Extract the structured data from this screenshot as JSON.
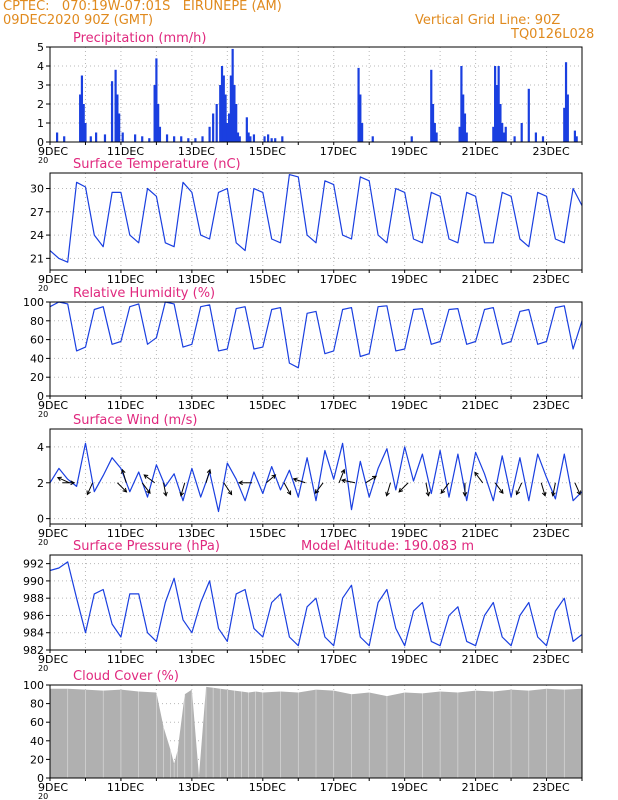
{
  "header": {
    "line1": "CPTEC:   070:19W-07:01S   EIRUNEPE (AM)",
    "line2": "09DEC2020 90Z (GMT)",
    "grid_note": "Vertical Grid Line: 90Z",
    "code": "TQ0126L028"
  },
  "colors": {
    "header": "#e08a1e",
    "title": "#e0287e",
    "series": "#1a3fe0",
    "cloud": "#b0b0b0",
    "grid": "#b8b8b8",
    "arrow": "#000000"
  },
  "x_ticks": [
    "9DEC",
    "11DEC",
    "13DEC",
    "15DEC",
    "17DEC",
    "19DEC",
    "21DEC",
    "23DEC"
  ],
  "x_tick_sub": "20",
  "panels": [
    {
      "title": "Precipitation (mm/h)",
      "ylabel_ticks": [
        "0",
        "1",
        "2",
        "3",
        "4",
        "5"
      ]
    },
    {
      "title": "Surface Temperature (nC)",
      "ylabel_ticks": [
        "21",
        "24",
        "27",
        "30"
      ]
    },
    {
      "title": "Relative Humidity (%)",
      "ylabel_ticks": [
        "0",
        "20",
        "40",
        "60",
        "80",
        "100"
      ]
    },
    {
      "title": "Surface Wind (m/s)",
      "ylabel_ticks": [
        "0",
        "2",
        "4"
      ]
    },
    {
      "title": "Surface Pressure (hPa)",
      "extra": "Model Altitude: 190.083 m",
      "ylabel_ticks": [
        "982",
        "984",
        "986",
        "988",
        "990",
        "992"
      ]
    },
    {
      "title": "Cloud Cover (%)",
      "ylabel_ticks": [
        "0",
        "20",
        "40",
        "60",
        "80",
        "100"
      ]
    }
  ],
  "chart_data": [
    {
      "type": "bar",
      "title": "Precipitation (mm/h)",
      "x_unit": "days since 09DEC 00Z",
      "ylim": [
        0,
        5
      ],
      "x": [
        0.2,
        0.4,
        0.85,
        0.9,
        0.95,
        1.0,
        1.15,
        1.3,
        1.55,
        1.75,
        1.85,
        1.9,
        1.95,
        2.05,
        2.4,
        2.6,
        2.8,
        2.95,
        3.0,
        3.05,
        3.1,
        3.3,
        3.5,
        3.7,
        3.9,
        4.1,
        4.3,
        4.5,
        4.6,
        4.7,
        4.8,
        4.85,
        4.9,
        4.95,
        5.0,
        5.05,
        5.1,
        5.15,
        5.2,
        5.25,
        5.3,
        5.35,
        5.55,
        5.6,
        5.65,
        5.75,
        6.05,
        6.15,
        6.25,
        6.35,
        6.55,
        8.7,
        8.75,
        8.8,
        9.1,
        10.2,
        10.75,
        10.8,
        10.85,
        10.9,
        11.55,
        11.6,
        11.65,
        11.7,
        11.75,
        12.5,
        12.55,
        12.6,
        12.65,
        12.7,
        12.75,
        12.8,
        12.85,
        13.1,
        13.3,
        13.5,
        13.7,
        13.9,
        14.5,
        14.55,
        14.6,
        14.8,
        14.85
      ],
      "values": [
        0.5,
        0.3,
        2.5,
        3.5,
        2.0,
        1.0,
        0.3,
        0.5,
        0.4,
        3.2,
        3.8,
        2.5,
        1.5,
        0.5,
        0.4,
        0.3,
        0.2,
        3.0,
        4.4,
        2.0,
        0.8,
        0.4,
        0.3,
        0.3,
        0.2,
        0.2,
        0.3,
        0.8,
        1.5,
        2.0,
        3.0,
        4.0,
        3.5,
        2.5,
        1.0,
        1.5,
        3.5,
        4.9,
        3.0,
        2.0,
        0.5,
        0.3,
        1.3,
        0.5,
        0.3,
        0.4,
        0.3,
        0.4,
        0.2,
        0.2,
        0.3,
        3.9,
        2.5,
        1.0,
        0.3,
        0.3,
        3.8,
        2.0,
        1.0,
        0.5,
        0.8,
        4.0,
        2.5,
        1.5,
        0.5,
        0.8,
        4.0,
        3.0,
        4.0,
        2.0,
        1.0,
        0.5,
        0.8,
        0.3,
        1.0,
        2.8,
        0.5,
        0.3,
        1.8,
        4.2,
        2.5,
        0.6,
        0.3
      ]
    },
    {
      "type": "line",
      "title": "Surface Temperature (nC)",
      "x_unit": "days since 09DEC 00Z",
      "ylim": [
        19.5,
        32
      ],
      "x": [
        0,
        0.25,
        0.5,
        0.75,
        1,
        1.25,
        1.5,
        1.75,
        2,
        2.25,
        2.5,
        2.75,
        3,
        3.25,
        3.5,
        3.75,
        4,
        4.25,
        4.5,
        4.75,
        5,
        5.25,
        5.5,
        5.75,
        6,
        6.25,
        6.5,
        6.75,
        7,
        7.25,
        7.5,
        7.75,
        8,
        8.25,
        8.5,
        8.75,
        9,
        9.25,
        9.5,
        9.75,
        10,
        10.25,
        10.5,
        10.75,
        11,
        11.25,
        11.5,
        11.75,
        12,
        12.25,
        12.5,
        12.75,
        13,
        13.25,
        13.5,
        13.75,
        14,
        14.25,
        14.5,
        14.75,
        15
      ],
      "values": [
        22,
        21,
        20.5,
        30.8,
        30.2,
        24,
        22.5,
        29.5,
        29.5,
        24,
        23,
        30,
        29,
        23,
        22.5,
        30.8,
        29.5,
        24,
        23.5,
        29.5,
        30,
        23,
        22,
        30,
        29.5,
        23.5,
        23,
        31.8,
        31.5,
        24,
        23,
        31,
        30.5,
        24,
        23.5,
        31.5,
        31,
        24,
        23,
        30,
        29.5,
        23.5,
        23,
        29.5,
        29,
        23.5,
        23,
        29.5,
        29,
        23,
        23,
        29.5,
        29,
        23.5,
        22.5,
        29.5,
        29,
        23.5,
        23,
        30,
        27.8
      ]
    },
    {
      "type": "line",
      "title": "Relative Humidity (%)",
      "x_unit": "days since 09DEC 00Z",
      "ylim": [
        0,
        100
      ],
      "x": [
        0,
        0.25,
        0.5,
        0.75,
        1,
        1.25,
        1.5,
        1.75,
        2,
        2.25,
        2.5,
        2.75,
        3,
        3.25,
        3.5,
        3.75,
        4,
        4.25,
        4.5,
        4.75,
        5,
        5.25,
        5.5,
        5.75,
        6,
        6.25,
        6.5,
        6.75,
        7,
        7.25,
        7.5,
        7.75,
        8,
        8.25,
        8.5,
        8.75,
        9,
        9.25,
        9.5,
        9.75,
        10,
        10.25,
        10.5,
        10.75,
        11,
        11.25,
        11.5,
        11.75,
        12,
        12.25,
        12.5,
        12.75,
        13,
        13.25,
        13.5,
        13.75,
        14,
        14.25,
        14.5,
        14.75,
        15
      ],
      "values": [
        95,
        100,
        98,
        48,
        52,
        92,
        95,
        55,
        58,
        95,
        98,
        55,
        62,
        100,
        98,
        52,
        55,
        95,
        97,
        48,
        50,
        93,
        95,
        50,
        52,
        92,
        94,
        35,
        30,
        88,
        90,
        45,
        48,
        92,
        94,
        42,
        45,
        95,
        96,
        48,
        50,
        92,
        93,
        55,
        58,
        92,
        93,
        55,
        58,
        92,
        94,
        55,
        58,
        90,
        92,
        55,
        58,
        94,
        96,
        50,
        80
      ]
    },
    {
      "type": "line",
      "title": "Surface Wind (m/s)",
      "x_unit": "days since 09DEC 00Z",
      "ylim": [
        -0.3,
        5
      ],
      "x": [
        0,
        0.25,
        0.5,
        0.75,
        1,
        1.25,
        1.5,
        1.75,
        2,
        2.25,
        2.5,
        2.75,
        3,
        3.25,
        3.5,
        3.75,
        4,
        4.25,
        4.5,
        4.75,
        5,
        5.25,
        5.5,
        5.75,
        6,
        6.25,
        6.5,
        6.75,
        7,
        7.25,
        7.5,
        7.75,
        8,
        8.25,
        8.5,
        8.75,
        9,
        9.25,
        9.5,
        9.75,
        10,
        10.25,
        10.5,
        10.75,
        11,
        11.25,
        11.5,
        11.75,
        12,
        12.25,
        12.5,
        12.75,
        13,
        13.25,
        13.5,
        13.75,
        14,
        14.25,
        14.5,
        14.75,
        15
      ],
      "values": [
        2.0,
        2.8,
        2.2,
        1.8,
        4.2,
        1.5,
        2.4,
        3.4,
        2.8,
        1.5,
        2.6,
        1.2,
        3.0,
        1.8,
        2.5,
        1.0,
        2.8,
        1.2,
        2.6,
        0.4,
        3.1,
        2.2,
        1.0,
        2.6,
        1.4,
        2.9,
        1.6,
        2.7,
        1.2,
        3.4,
        1.0,
        3.8,
        2.2,
        4.2,
        0.5,
        3.2,
        1.2,
        2.8,
        3.9,
        1.6,
        4.0,
        2.1,
        3.6,
        1.4,
        3.8,
        1.2,
        3.6,
        1.0,
        3.7,
        2.5,
        1.0,
        3.5,
        1.2,
        3.4,
        1.0,
        3.6,
        2.3,
        1.1,
        3.6,
        1.0,
        1.5
      ],
      "vectors": [
        {
          "t": 0.35,
          "u": 0.9,
          "v": 0.0
        },
        {
          "t": 0.55,
          "u": -0.9,
          "v": 0.4
        },
        {
          "t": 1.2,
          "u": -0.4,
          "v": -0.9
        },
        {
          "t": 1.9,
          "u": 0.7,
          "v": -0.7
        },
        {
          "t": 2.15,
          "u": -0.3,
          "v": 1.0
        },
        {
          "t": 2.6,
          "u": 0.6,
          "v": -0.8
        },
        {
          "t": 2.95,
          "u": -0.8,
          "v": 0.6
        },
        {
          "t": 3.2,
          "u": 0.2,
          "v": -1.0
        },
        {
          "t": 3.8,
          "u": -0.3,
          "v": -1.0
        },
        {
          "t": 4.4,
          "u": 0.3,
          "v": 1.0
        },
        {
          "t": 4.9,
          "u": 0.6,
          "v": -0.9
        },
        {
          "t": 5.7,
          "u": -1.0,
          "v": 0.0
        },
        {
          "t": 6.1,
          "u": 0.7,
          "v": 0.6
        },
        {
          "t": 6.6,
          "u": 0.5,
          "v": -0.9
        },
        {
          "t": 7.2,
          "u": -0.9,
          "v": 0.3
        },
        {
          "t": 7.7,
          "u": -0.6,
          "v": -0.8
        },
        {
          "t": 8.15,
          "u": 0.4,
          "v": 1.0
        },
        {
          "t": 8.6,
          "u": -1.0,
          "v": 0.2
        },
        {
          "t": 8.9,
          "u": 0.8,
          "v": 0.5
        },
        {
          "t": 9.6,
          "u": -0.3,
          "v": -1.0
        },
        {
          "t": 10.1,
          "u": -0.7,
          "v": -0.7
        },
        {
          "t": 10.6,
          "u": 0.2,
          "v": -1.0
        },
        {
          "t": 11.25,
          "u": -0.6,
          "v": -0.8
        },
        {
          "t": 11.7,
          "u": 0.0,
          "v": -1.0
        },
        {
          "t": 12.2,
          "u": -0.6,
          "v": 0.8
        },
        {
          "t": 12.55,
          "u": 0.6,
          "v": -0.8
        },
        {
          "t": 13.3,
          "u": -0.4,
          "v": -0.9
        },
        {
          "t": 13.85,
          "u": 0.3,
          "v": -1.0
        },
        {
          "t": 14.25,
          "u": -0.2,
          "v": -1.0
        },
        {
          "t": 14.8,
          "u": 0.4,
          "v": -0.9
        }
      ]
    },
    {
      "type": "line",
      "title": "Surface Pressure (hPa)",
      "x_unit": "days since 09DEC 00Z",
      "ylim": [
        982,
        993
      ],
      "x": [
        0,
        0.25,
        0.5,
        0.75,
        1,
        1.25,
        1.5,
        1.75,
        2,
        2.25,
        2.5,
        2.75,
        3,
        3.25,
        3.5,
        3.75,
        4,
        4.25,
        4.5,
        4.75,
        5,
        5.25,
        5.5,
        5.75,
        6,
        6.25,
        6.5,
        6.75,
        7,
        7.25,
        7.5,
        7.75,
        8,
        8.25,
        8.5,
        8.75,
        9,
        9.25,
        9.5,
        9.75,
        10,
        10.25,
        10.5,
        10.75,
        11,
        11.25,
        11.5,
        11.75,
        12,
        12.25,
        12.5,
        12.75,
        13,
        13.25,
        13.5,
        13.75,
        14,
        14.25,
        14.5,
        14.75,
        15
      ],
      "values": [
        991.2,
        991.5,
        992.2,
        988.0,
        984.0,
        988.5,
        989.0,
        985.0,
        983.5,
        988.5,
        988.5,
        984.0,
        983.0,
        987.5,
        990.3,
        985.5,
        984.0,
        987.5,
        990.0,
        984.5,
        983.0,
        988.5,
        989.0,
        984.5,
        983.5,
        987.5,
        988.5,
        983.5,
        982.5,
        987.0,
        988.0,
        983.5,
        982.5,
        988.0,
        989.5,
        983.5,
        982.5,
        987.5,
        989.0,
        984.5,
        982.5,
        986.5,
        987.5,
        983.0,
        982.5,
        986.0,
        987.0,
        983.0,
        982.5,
        986.0,
        987.5,
        983.5,
        982.5,
        986.0,
        987.5,
        983.5,
        982.5,
        986.5,
        988.0,
        983.0,
        983.8
      ]
    },
    {
      "type": "area",
      "title": "Cloud Cover (%)",
      "x_unit": "days since 09DEC 00Z",
      "ylim": [
        0,
        100
      ],
      "x": [
        0,
        0.5,
        1,
        1.5,
        2,
        2.5,
        3,
        3.2,
        3.4,
        3.5,
        3.6,
        3.8,
        4,
        4.2,
        4.4,
        4.6,
        4.8,
        5,
        5.2,
        5.4,
        5.6,
        5.8,
        6,
        6.5,
        7,
        7.5,
        8,
        8.5,
        9,
        9.5,
        10,
        10.5,
        11,
        11.5,
        12,
        12.5,
        13,
        13.5,
        14,
        14.5,
        15
      ],
      "values": [
        96,
        96,
        95,
        94,
        95,
        93,
        92,
        55,
        30,
        15,
        30,
        90,
        95,
        2,
        98,
        97,
        96,
        95,
        94,
        93,
        92,
        93,
        92,
        93,
        92,
        95,
        94,
        90,
        92,
        88,
        92,
        91,
        93,
        92,
        94,
        93,
        95,
        94,
        96,
        95,
        96
      ]
    }
  ]
}
